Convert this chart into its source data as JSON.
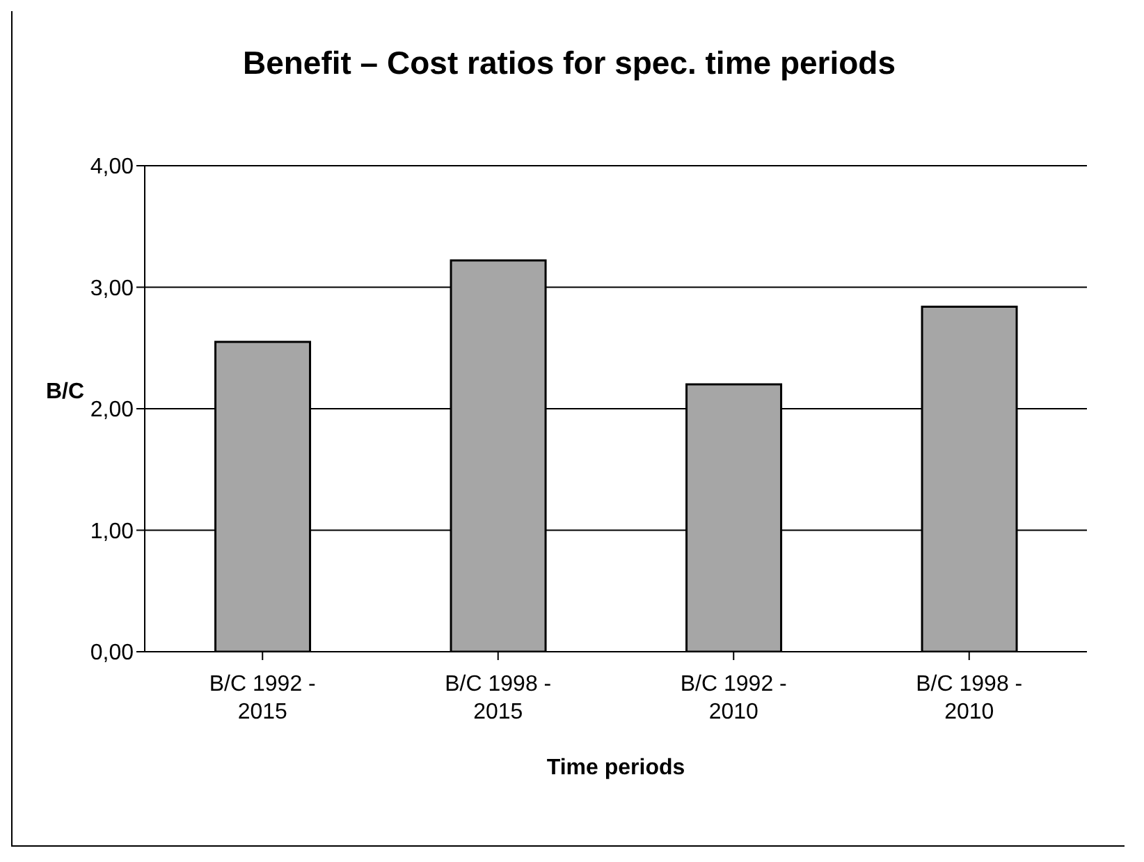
{
  "chart_data": {
    "type": "bar",
    "title": "Benefit – Cost ratios for spec. time periods",
    "xlabel": "Time periods",
    "ylabel": "B/C",
    "categories": [
      "B/C 1992 - 2015",
      "B/C 1998 - 2015",
      "B/C 1992 - 2010",
      "B/C 1998 - 2010"
    ],
    "values": [
      2.55,
      3.22,
      2.2,
      2.84
    ],
    "color": "#a6a6a6",
    "ylim": [
      0,
      4
    ],
    "yticks": [
      {
        "value": 0,
        "label": "0,00"
      },
      {
        "value": 1,
        "label": "1,00"
      },
      {
        "value": 2,
        "label": "2,00"
      },
      {
        "value": 3,
        "label": "3,00"
      },
      {
        "value": 4,
        "label": "4,00"
      }
    ],
    "grid": "y",
    "legend": false
  }
}
